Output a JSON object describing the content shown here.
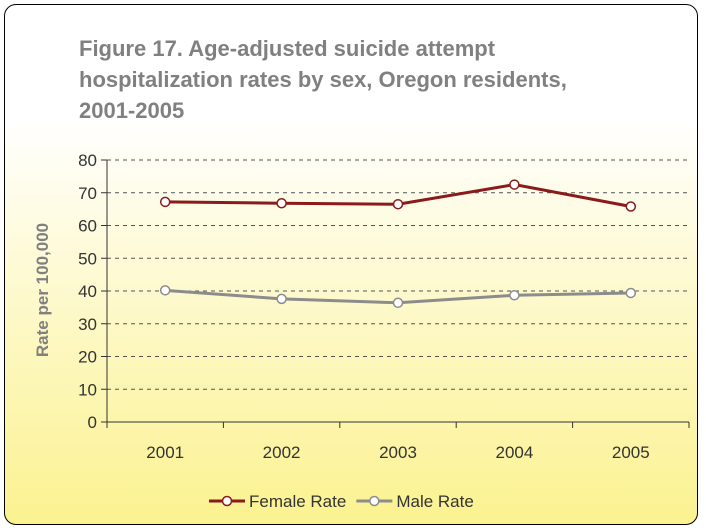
{
  "chart_data": {
    "type": "line",
    "title": "Figure 17. Age-adjusted suicide attempt hospitalization rates by sex, Oregon residents, 2001-2005",
    "xlabel": "",
    "ylabel": "Rate per 100,000",
    "categories": [
      "2001",
      "2002",
      "2003",
      "2004",
      "2005"
    ],
    "ylim": [
      0,
      80
    ],
    "yticks": [
      0,
      10,
      20,
      30,
      40,
      50,
      60,
      70,
      80
    ],
    "grid": true,
    "legend": "bottom",
    "series": [
      {
        "name": "Female Rate",
        "color": "#8b1a1a",
        "values": [
          67.2,
          66.8,
          66.5,
          72.5,
          65.8
        ]
      },
      {
        "name": "Male Rate",
        "color": "#8c8c8c",
        "values": [
          40.2,
          37.6,
          36.4,
          38.7,
          39.4
        ]
      }
    ]
  }
}
